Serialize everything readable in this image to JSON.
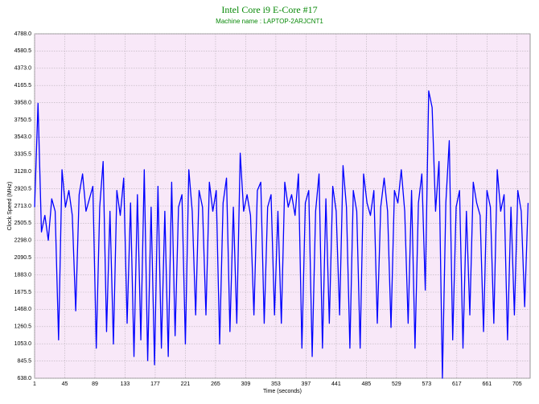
{
  "chart_data": {
    "type": "line",
    "title": "Intel Core i9 E-Core #17",
    "subtitle": "Machine name : LAPTOP-2ARJCNT1",
    "x_label": "Time (seconds)",
    "y_label": "Clock Speed (MHz)",
    "xlim": [
      1,
      724
    ],
    "ylim": [
      638,
      4788
    ],
    "xticks": [
      1,
      45,
      89,
      133,
      177,
      221,
      265,
      309,
      353,
      397,
      441,
      485,
      529,
      573,
      617,
      661,
      705
    ],
    "yticks": [
      {
        "value": 638,
        "label": "638.0"
      },
      845.5,
      {
        "value": 1053,
        "label": "1053.0"
      },
      1260.5,
      {
        "value": 1468,
        "label": "1468.0"
      },
      1675.5,
      {
        "value": 1883,
        "label": "1883.0"
      },
      2090.5,
      {
        "value": 2298,
        "label": "2298.0"
      },
      2505.5,
      {
        "value": 2713,
        "label": "2713.0"
      },
      2920.5,
      {
        "value": 3128,
        "label": "3128.0"
      },
      3335.5,
      {
        "value": 3543,
        "label": "3543.0"
      },
      3750.5,
      {
        "value": 3958,
        "label": "3958.0"
      },
      4165.5,
      {
        "value": 4373,
        "label": "4373.0"
      },
      4580.5,
      {
        "value": 4788,
        "label": "4788.0"
      }
    ],
    "grid": true,
    "x": [
      1,
      6,
      11,
      16,
      21,
      26,
      31,
      36,
      41,
      46,
      51,
      56,
      61,
      66,
      71,
      76,
      81,
      86,
      91,
      96,
      101,
      106,
      111,
      116,
      121,
      126,
      131,
      136,
      141,
      146,
      151,
      156,
      161,
      166,
      171,
      176,
      181,
      186,
      191,
      196,
      201,
      206,
      211,
      216,
      221,
      226,
      231,
      236,
      241,
      246,
      251,
      256,
      261,
      266,
      271,
      276,
      281,
      286,
      291,
      296,
      301,
      306,
      311,
      316,
      321,
      326,
      331,
      336,
      341,
      346,
      351,
      356,
      361,
      366,
      371,
      376,
      381,
      386,
      391,
      396,
      401,
      406,
      411,
      416,
      421,
      426,
      431,
      436,
      441,
      446,
      451,
      456,
      461,
      466,
      471,
      476,
      481,
      486,
      491,
      496,
      501,
      506,
      511,
      516,
      521,
      526,
      531,
      536,
      541,
      546,
      551,
      556,
      561,
      566,
      571,
      576,
      581,
      586,
      591,
      596,
      601,
      606,
      611,
      616,
      621,
      626,
      631,
      636,
      641,
      646,
      651,
      656,
      661,
      666,
      671,
      676,
      681,
      686,
      691,
      696,
      701,
      706,
      711,
      716,
      721
    ],
    "series": [
      {
        "name": "E-Core #17",
        "color": "#0000ff",
        "values": [
          2700,
          3950,
          2400,
          2600,
          2300,
          2800,
          2650,
          1100,
          3150,
          2700,
          2900,
          2600,
          1450,
          2850,
          3100,
          2650,
          2800,
          2950,
          1000,
          2700,
          3250,
          1200,
          2650,
          1050,
          2900,
          2600,
          3050,
          1300,
          2750,
          900,
          2850,
          1100,
          3150,
          850,
          2700,
          800,
          2950,
          1000,
          2650,
          900,
          3000,
          1150,
          2700,
          2850,
          1050,
          3150,
          2650,
          1400,
          2900,
          2700,
          1400,
          3000,
          2650,
          2900,
          1050,
          2750,
          3050,
          1200,
          2700,
          1300,
          3350,
          2650,
          2850,
          2600,
          1400,
          2900,
          3000,
          1300,
          2700,
          2850,
          1400,
          2650,
          1300,
          3000,
          2700,
          2850,
          2600,
          3100,
          1000,
          2750,
          2900,
          900,
          2650,
          3100,
          1000,
          2800,
          1300,
          2950,
          2650,
          1400,
          3200,
          2700,
          1000,
          2900,
          2650,
          1000,
          3100,
          2750,
          2600,
          2900,
          1300,
          2700,
          3050,
          2650,
          1250,
          2900,
          2750,
          3150,
          2650,
          1300,
          2900,
          1000,
          2750,
          3100,
          1700,
          4100,
          3900,
          2650,
          3250,
          638,
          2750,
          3500,
          1100,
          2700,
          2900,
          1000,
          2650,
          1400,
          3000,
          2750,
          2600,
          1200,
          2900,
          2700,
          1300,
          3150,
          2650,
          2850,
          1100,
          2700,
          1400,
          2900,
          2650,
          1500,
          2750
        ]
      }
    ]
  }
}
